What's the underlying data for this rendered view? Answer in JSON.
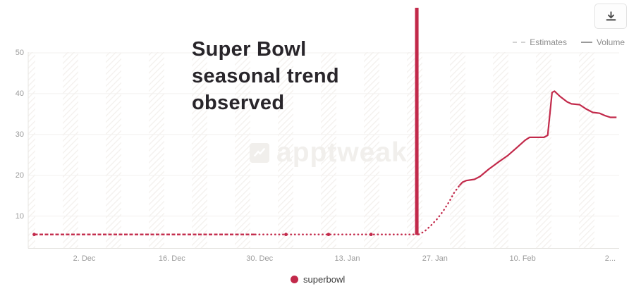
{
  "icons": {
    "download": "download-icon",
    "logo": "apptweak-logo-icon"
  },
  "annotation": {
    "title_lines": [
      "Super Bowl",
      "seasonal trend",
      "observed"
    ]
  },
  "watermark": {
    "text": "apptweak"
  },
  "legend_top": {
    "estimates_label": "Estimates",
    "volume_label": "Volume"
  },
  "legend_bottom": {
    "series_label": "superbowl"
  },
  "colors": {
    "series": "#c2294a",
    "annotation_line": "#c2294a",
    "title_text": "#28252a",
    "axis_text": "#9b9b9b",
    "legend_text": "#8d8d8d",
    "grid": "#f3f1ef",
    "axis_line": "#e7e5e2",
    "hatch": "#f3f0ed",
    "watermark": "#f1efec"
  },
  "chart_data": {
    "type": "line",
    "title": "Super Bowl seasonal trend observed",
    "series_name": "superbowl",
    "legend": [
      "Estimates",
      "Volume"
    ],
    "grid": true,
    "y_ticks": [
      50,
      40,
      30,
      20,
      10
    ],
    "ylim": [
      2,
      50.5
    ],
    "x_ticks": [
      {
        "label": "2. Dec",
        "day": 8
      },
      {
        "label": "16. Dec",
        "day": 22
      },
      {
        "label": "30. Dec",
        "day": 36
      },
      {
        "label": "13. Jan",
        "day": 50
      },
      {
        "label": "27. Jan",
        "day": 64
      },
      {
        "label": "10. Feb",
        "day": 78
      },
      {
        "label": "2...",
        "day": 92
      }
    ],
    "x_unit": "day index, day 0 = first plotted date (late Nov)",
    "annotation_vline_day": 61.1,
    "segments": [
      {
        "style": "dense-dash",
        "points": [
          [
            0,
            5.5
          ],
          [
            35.3,
            5.5
          ]
        ]
      },
      {
        "style": "dot",
        "points": [
          [
            35.3,
            5.5
          ],
          [
            61.2,
            5.5
          ]
        ]
      },
      {
        "style": "dot",
        "points": [
          [
            61.4,
            5.5
          ],
          [
            62.3,
            6.2
          ],
          [
            63.3,
            7.6
          ],
          [
            64.3,
            9.2
          ],
          [
            65.3,
            11.2
          ],
          [
            66.3,
            13.6
          ],
          [
            67.1,
            15.8
          ],
          [
            67.9,
            17.5
          ]
        ]
      },
      {
        "style": "solid",
        "points": [
          [
            67.9,
            17.5
          ],
          [
            68.4,
            18.3
          ],
          [
            69.0,
            18.7
          ],
          [
            70.3,
            19.0
          ],
          [
            71.2,
            19.7
          ],
          [
            72.6,
            21.5
          ],
          [
            74.1,
            23.2
          ],
          [
            75.6,
            24.8
          ],
          [
            77.1,
            26.8
          ],
          [
            78.4,
            28.6
          ],
          [
            79.1,
            29.3
          ],
          [
            81.4,
            29.3
          ],
          [
            82.0,
            29.8
          ],
          [
            82.7,
            40.3
          ],
          [
            83.1,
            40.6
          ],
          [
            84.0,
            39.3
          ],
          [
            85.1,
            38.0
          ],
          [
            85.8,
            37.5
          ],
          [
            87.1,
            37.3
          ],
          [
            88.2,
            36.2
          ],
          [
            89.2,
            35.4
          ],
          [
            90.3,
            35.2
          ],
          [
            91.2,
            34.6
          ],
          [
            92.0,
            34.2
          ],
          [
            93.0,
            34.2
          ]
        ]
      }
    ],
    "markers": {
      "days": [
        0,
        40.2,
        47.0,
        53.8
      ],
      "value": 5.5
    }
  }
}
